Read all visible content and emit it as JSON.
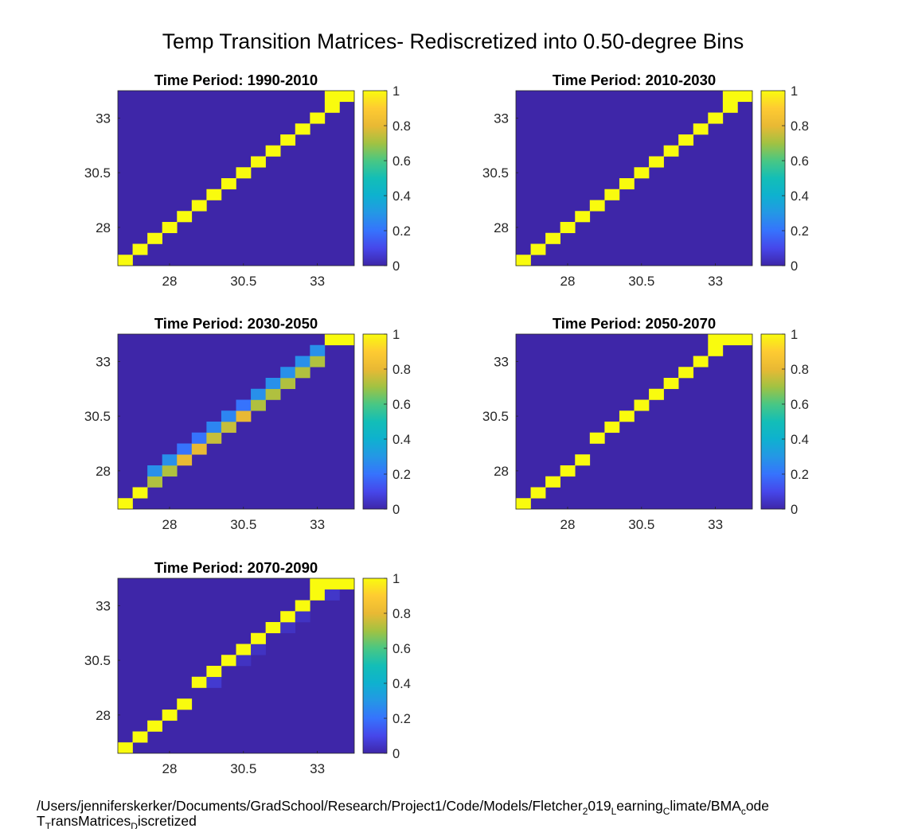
{
  "figure": {
    "title": "Temp Transition Matrices- Rediscretized into 0.50-degree Bins"
  },
  "footer": {
    "line1": [
      {
        "t": "/Users/jenniferskerker/Documents/GradSchool/Research/Project1/Code/Models/Fletcher",
        "sub": false
      },
      {
        "t": "2",
        "sub": true
      },
      {
        "t": "019",
        "sub": false
      },
      {
        "t": "L",
        "sub": true
      },
      {
        "t": "earning",
        "sub": false
      },
      {
        "t": "C",
        "sub": true
      },
      {
        "t": "limate/BMA",
        "sub": false
      },
      {
        "t": "c",
        "sub": true
      },
      {
        "t": "ode",
        "sub": false
      }
    ],
    "line2": [
      {
        "t": "T",
        "sub": false
      },
      {
        "t": "T",
        "sub": true
      },
      {
        "t": "ransMatrices",
        "sub": false
      },
      {
        "t": "D",
        "sub": true
      },
      {
        "t": "iscretized",
        "sub": false
      }
    ]
  },
  "chart_data": [
    {
      "type": "heatmap",
      "title": "Time Period: 1990-2010",
      "grid_size": 16,
      "axis": {
        "min": 26.25,
        "max": 34.25,
        "ticks": [
          28,
          30.5,
          33
        ],
        "tick_labels": [
          "28",
          "30.5",
          "33"
        ]
      },
      "colorbar": {
        "min": 0,
        "max": 1,
        "ticks": [
          0,
          0.2,
          0.4,
          0.6,
          0.8,
          1
        ],
        "tick_labels": [
          "0",
          "0.2",
          "0.4",
          "0.6",
          "0.8",
          "1"
        ]
      },
      "colormap": "parula",
      "background_value": 0,
      "cells": [
        {
          "row": 0,
          "col": 0,
          "v": 1
        },
        {
          "row": 1,
          "col": 1,
          "v": 1
        },
        {
          "row": 2,
          "col": 2,
          "v": 1
        },
        {
          "row": 3,
          "col": 3,
          "v": 1
        },
        {
          "row": 4,
          "col": 4,
          "v": 1
        },
        {
          "row": 5,
          "col": 5,
          "v": 1
        },
        {
          "row": 6,
          "col": 6,
          "v": 1
        },
        {
          "row": 7,
          "col": 7,
          "v": 1
        },
        {
          "row": 8,
          "col": 8,
          "v": 1
        },
        {
          "row": 9,
          "col": 9,
          "v": 1
        },
        {
          "row": 10,
          "col": 10,
          "v": 1
        },
        {
          "row": 11,
          "col": 11,
          "v": 1
        },
        {
          "row": 12,
          "col": 12,
          "v": 1
        },
        {
          "row": 13,
          "col": 13,
          "v": 1
        },
        {
          "row": 14,
          "col": 14,
          "v": 1
        },
        {
          "row": 15,
          "col": 14,
          "v": 1
        },
        {
          "row": 15,
          "col": 15,
          "v": 1
        }
      ]
    },
    {
      "type": "heatmap",
      "title": "Time Period: 2010-2030",
      "grid_size": 16,
      "axis": {
        "min": 26.25,
        "max": 34.25,
        "ticks": [
          28,
          30.5,
          33
        ],
        "tick_labels": [
          "28",
          "30.5",
          "33"
        ]
      },
      "colorbar": {
        "min": 0,
        "max": 1,
        "ticks": [
          0,
          0.2,
          0.4,
          0.6,
          0.8,
          1
        ],
        "tick_labels": [
          "0",
          "0.2",
          "0.4",
          "0.6",
          "0.8",
          "1"
        ]
      },
      "colormap": "parula",
      "background_value": 0,
      "cells": [
        {
          "row": 0,
          "col": 0,
          "v": 1
        },
        {
          "row": 1,
          "col": 1,
          "v": 1
        },
        {
          "row": 2,
          "col": 2,
          "v": 1
        },
        {
          "row": 3,
          "col": 3,
          "v": 1
        },
        {
          "row": 4,
          "col": 4,
          "v": 1
        },
        {
          "row": 5,
          "col": 5,
          "v": 1
        },
        {
          "row": 6,
          "col": 6,
          "v": 1
        },
        {
          "row": 7,
          "col": 7,
          "v": 1
        },
        {
          "row": 8,
          "col": 8,
          "v": 1
        },
        {
          "row": 9,
          "col": 9,
          "v": 1
        },
        {
          "row": 10,
          "col": 10,
          "v": 1
        },
        {
          "row": 11,
          "col": 11,
          "v": 1
        },
        {
          "row": 12,
          "col": 12,
          "v": 1
        },
        {
          "row": 13,
          "col": 13,
          "v": 1
        },
        {
          "row": 14,
          "col": 14,
          "v": 1
        },
        {
          "row": 15,
          "col": 14,
          "v": 1
        },
        {
          "row": 15,
          "col": 15,
          "v": 1
        }
      ]
    },
    {
      "type": "heatmap",
      "title": "Time Period: 2030-2050",
      "grid_size": 16,
      "axis": {
        "min": 26.25,
        "max": 34.25,
        "ticks": [
          28,
          30.5,
          33
        ],
        "tick_labels": [
          "28",
          "30.5",
          "33"
        ]
      },
      "colorbar": {
        "min": 0,
        "max": 1,
        "ticks": [
          0,
          0.2,
          0.4,
          0.6,
          0.8,
          1
        ],
        "tick_labels": [
          "0",
          "0.2",
          "0.4",
          "0.6",
          "0.8",
          "1"
        ]
      },
      "colormap": "parula",
      "background_value": 0,
      "cells": [
        {
          "row": 0,
          "col": 0,
          "v": 1
        },
        {
          "row": 1,
          "col": 1,
          "v": 1
        },
        {
          "row": 2,
          "col": 2,
          "v": 0.72
        },
        {
          "row": 3,
          "col": 2,
          "v": 0.28
        },
        {
          "row": 3,
          "col": 3,
          "v": 0.72
        },
        {
          "row": 4,
          "col": 3,
          "v": 0.28
        },
        {
          "row": 4,
          "col": 4,
          "v": 0.8
        },
        {
          "row": 5,
          "col": 4,
          "v": 0.2
        },
        {
          "row": 5,
          "col": 5,
          "v": 0.8
        },
        {
          "row": 6,
          "col": 5,
          "v": 0.2
        },
        {
          "row": 6,
          "col": 6,
          "v": 0.75
        },
        {
          "row": 7,
          "col": 6,
          "v": 0.25
        },
        {
          "row": 7,
          "col": 7,
          "v": 0.75
        },
        {
          "row": 8,
          "col": 7,
          "v": 0.25
        },
        {
          "row": 8,
          "col": 8,
          "v": 0.8
        },
        {
          "row": 9,
          "col": 8,
          "v": 0.2
        },
        {
          "row": 9,
          "col": 9,
          "v": 0.72
        },
        {
          "row": 10,
          "col": 9,
          "v": 0.28
        },
        {
          "row": 10,
          "col": 10,
          "v": 0.72
        },
        {
          "row": 11,
          "col": 10,
          "v": 0.28
        },
        {
          "row": 11,
          "col": 11,
          "v": 0.72
        },
        {
          "row": 12,
          "col": 11,
          "v": 0.28
        },
        {
          "row": 12,
          "col": 12,
          "v": 0.72
        },
        {
          "row": 13,
          "col": 12,
          "v": 0.28
        },
        {
          "row": 13,
          "col": 13,
          "v": 0.72
        },
        {
          "row": 14,
          "col": 13,
          "v": 0.28
        },
        {
          "row": 15,
          "col": 14,
          "v": 1
        },
        {
          "row": 15,
          "col": 15,
          "v": 1
        }
      ]
    },
    {
      "type": "heatmap",
      "title": "Time Period: 2050-2070",
      "grid_size": 16,
      "axis": {
        "min": 26.25,
        "max": 34.25,
        "ticks": [
          28,
          30.5,
          33
        ],
        "tick_labels": [
          "28",
          "30.5",
          "33"
        ]
      },
      "colorbar": {
        "min": 0,
        "max": 1,
        "ticks": [
          0,
          0.2,
          0.4,
          0.6,
          0.8,
          1
        ],
        "tick_labels": [
          "0",
          "0.2",
          "0.4",
          "0.6",
          "0.8",
          "1"
        ]
      },
      "colormap": "parula",
      "background_value": 0,
      "cells": [
        {
          "row": 0,
          "col": 0,
          "v": 1
        },
        {
          "row": 1,
          "col": 1,
          "v": 1
        },
        {
          "row": 2,
          "col": 2,
          "v": 1
        },
        {
          "row": 3,
          "col": 3,
          "v": 1
        },
        {
          "row": 4,
          "col": 4,
          "v": 1
        },
        {
          "row": 6,
          "col": 5,
          "v": 1
        },
        {
          "row": 7,
          "col": 6,
          "v": 1
        },
        {
          "row": 8,
          "col": 7,
          "v": 1
        },
        {
          "row": 9,
          "col": 8,
          "v": 1
        },
        {
          "row": 10,
          "col": 9,
          "v": 1
        },
        {
          "row": 11,
          "col": 10,
          "v": 1
        },
        {
          "row": 12,
          "col": 11,
          "v": 1
        },
        {
          "row": 13,
          "col": 12,
          "v": 1
        },
        {
          "row": 14,
          "col": 13,
          "v": 1
        },
        {
          "row": 15,
          "col": 13,
          "v": 1
        },
        {
          "row": 15,
          "col": 14,
          "v": 1
        },
        {
          "row": 15,
          "col": 15,
          "v": 1
        }
      ]
    },
    {
      "type": "heatmap",
      "title": "Time Period: 2070-2090",
      "grid_size": 16,
      "axis": {
        "min": 26.25,
        "max": 34.25,
        "ticks": [
          28,
          30.5,
          33
        ],
        "tick_labels": [
          "28",
          "30.5",
          "33"
        ]
      },
      "colorbar": {
        "min": 0,
        "max": 1,
        "ticks": [
          0,
          0.2,
          0.4,
          0.6,
          0.8,
          1
        ],
        "tick_labels": [
          "0",
          "0.2",
          "0.4",
          "0.6",
          "0.8",
          "1"
        ]
      },
      "colormap": "parula",
      "background_value": 0,
      "cells": [
        {
          "row": 0,
          "col": 0,
          "v": 1
        },
        {
          "row": 1,
          "col": 1,
          "v": 1
        },
        {
          "row": 2,
          "col": 2,
          "v": 1
        },
        {
          "row": 3,
          "col": 3,
          "v": 1
        },
        {
          "row": 4,
          "col": 4,
          "v": 1
        },
        {
          "row": 6,
          "col": 5,
          "v": 1
        },
        {
          "row": 6,
          "col": 6,
          "v": 0.06
        },
        {
          "row": 7,
          "col": 6,
          "v": 1
        },
        {
          "row": 8,
          "col": 7,
          "v": 1
        },
        {
          "row": 8,
          "col": 8,
          "v": 0.04
        },
        {
          "row": 9,
          "col": 8,
          "v": 1
        },
        {
          "row": 9,
          "col": 9,
          "v": 0.04
        },
        {
          "row": 10,
          "col": 9,
          "v": 1
        },
        {
          "row": 11,
          "col": 10,
          "v": 1
        },
        {
          "row": 11,
          "col": 11,
          "v": 0.04
        },
        {
          "row": 12,
          "col": 11,
          "v": 1
        },
        {
          "row": 12,
          "col": 12,
          "v": 0.04
        },
        {
          "row": 13,
          "col": 12,
          "v": 1
        },
        {
          "row": 14,
          "col": 13,
          "v": 1
        },
        {
          "row": 14,
          "col": 14,
          "v": 0.05
        },
        {
          "row": 15,
          "col": 13,
          "v": 1
        },
        {
          "row": 15,
          "col": 14,
          "v": 1
        },
        {
          "row": 15,
          "col": 15,
          "v": 1
        }
      ]
    }
  ]
}
